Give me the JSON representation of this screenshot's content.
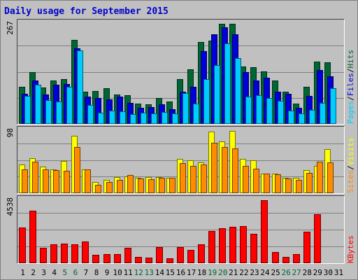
{
  "colors": {
    "hits": "#006633",
    "files": "#0000d8",
    "pages": "#00ccff",
    "visits": "#ffff00",
    "sites": "#ff8c00",
    "kbytes": "#ff0000",
    "weekday_label": "#000000",
    "weekend_label": "#006633"
  },
  "chart_data": [
    {
      "type": "bar",
      "title": "Daily usage for September 2015",
      "ymax_label": "267",
      "ylim": [
        0,
        267
      ],
      "legend": [
        "Pages",
        "/",
        "Files",
        "/",
        "Hits"
      ],
      "categories": [
        "1",
        "2",
        "3",
        "4",
        "5",
        "6",
        "7",
        "8",
        "9",
        "10",
        "11",
        "12",
        "13",
        "14",
        "15",
        "16",
        "17",
        "18",
        "19",
        "20",
        "21",
        "22",
        "23",
        "24",
        "25",
        "26",
        "27",
        "28",
        "29",
        "30",
        "31"
      ],
      "series": [
        {
          "name": "Hits",
          "values": [
            97,
            135,
            94,
            112,
            117,
            218,
            83,
            85,
            92,
            77,
            75,
            53,
            51,
            67,
            59,
            116,
            141,
            213,
            217,
            260,
            259,
            149,
            148,
            137,
            112,
            84,
            52,
            96,
            161,
            159,
            0
          ]
        },
        {
          "name": "Files",
          "values": [
            78,
            113,
            77,
            101,
            103,
            196,
            70,
            67,
            64,
            70,
            55,
            42,
            43,
            51,
            38,
            84,
            97,
            189,
            232,
            251,
            233,
            134,
            113,
            120,
            83,
            78,
            42,
            72,
            139,
            124,
            0
          ]
        },
        {
          "name": "Pages",
          "values": [
            72,
            102,
            62,
            58,
            96,
            191,
            49,
            29,
            35,
            32,
            25,
            29,
            27,
            31,
            27,
            80,
            53,
            116,
            153,
            209,
            170,
            71,
            74,
            68,
            60,
            34,
            27,
            36,
            54,
            93,
            0
          ]
        }
      ]
    },
    {
      "type": "bar",
      "ymax_label": "98",
      "ylim": [
        0,
        98
      ],
      "legend": [
        "Sites",
        "/",
        "Visits"
      ],
      "categories": [
        "1",
        "2",
        "3",
        "4",
        "5",
        "6",
        "7",
        "8",
        "9",
        "10",
        "11",
        "12",
        "13",
        "14",
        "15",
        "16",
        "17",
        "18",
        "19",
        "20",
        "21",
        "22",
        "23",
        "24",
        "25",
        "26",
        "27",
        "28",
        "29",
        "30",
        "31"
      ],
      "series": [
        {
          "name": "Visits",
          "values": [
            43,
            53,
            40,
            36,
            48,
            86,
            36,
            17,
            20,
            24,
            25,
            23,
            24,
            24,
            23,
            52,
            49,
            46,
            93,
            78,
            94,
            52,
            49,
            30,
            30,
            23,
            23,
            35,
            41,
            66,
            0
          ]
        },
        {
          "name": "Sites",
          "values": [
            36,
            47,
            36,
            35,
            34,
            70,
            36,
            13,
            17,
            20,
            27,
            22,
            21,
            23,
            23,
            45,
            41,
            43,
            76,
            70,
            67,
            41,
            37,
            30,
            28,
            22,
            20,
            31,
            47,
            46,
            0
          ]
        }
      ]
    },
    {
      "type": "bar",
      "ymax_label": "4538",
      "ylim": [
        0,
        4538
      ],
      "legend": [
        "KBytes"
      ],
      "categories": [
        "1",
        "2",
        "3",
        "4",
        "5",
        "6",
        "7",
        "8",
        "9",
        "10",
        "11",
        "12",
        "13",
        "14",
        "15",
        "16",
        "17",
        "18",
        "19",
        "20",
        "21",
        "22",
        "23",
        "24",
        "25",
        "26",
        "27",
        "28",
        "29",
        "30",
        "31"
      ],
      "series": [
        {
          "name": "KBytes",
          "values": [
            2451,
            3642,
            1072,
            1296,
            1347,
            1313,
            1482,
            582,
            609,
            606,
            1067,
            411,
            393,
            1121,
            334,
            1103,
            930,
            1297,
            2200,
            2400,
            2522,
            2575,
            2016,
            4349,
            775,
            428,
            645,
            2150,
            3384,
            0,
            0
          ]
        }
      ]
    }
  ],
  "x_labels": [
    {
      "text": "1",
      "weekend": false
    },
    {
      "text": "2",
      "weekend": false
    },
    {
      "text": "3",
      "weekend": false
    },
    {
      "text": "4",
      "weekend": false
    },
    {
      "text": "5",
      "weekend": true
    },
    {
      "text": "6",
      "weekend": true
    },
    {
      "text": "7",
      "weekend": false
    },
    {
      "text": "8",
      "weekend": false
    },
    {
      "text": "9",
      "weekend": false
    },
    {
      "text": "10",
      "weekend": false
    },
    {
      "text": "11",
      "weekend": false
    },
    {
      "text": "12",
      "weekend": true
    },
    {
      "text": "13",
      "weekend": true
    },
    {
      "text": "14",
      "weekend": false
    },
    {
      "text": "15",
      "weekend": false
    },
    {
      "text": "16",
      "weekend": false
    },
    {
      "text": "17",
      "weekend": false
    },
    {
      "text": "18",
      "weekend": false
    },
    {
      "text": "19",
      "weekend": true
    },
    {
      "text": "20",
      "weekend": true
    },
    {
      "text": "21",
      "weekend": false
    },
    {
      "text": "22",
      "weekend": false
    },
    {
      "text": "23",
      "weekend": false
    },
    {
      "text": "24",
      "weekend": false
    },
    {
      "text": "25",
      "weekend": false
    },
    {
      "text": "26",
      "weekend": true
    },
    {
      "text": "27",
      "weekend": true
    },
    {
      "text": "28",
      "weekend": false
    },
    {
      "text": "29",
      "weekend": false
    },
    {
      "text": "30",
      "weekend": false
    },
    {
      "text": "31",
      "weekend": false
    }
  ]
}
